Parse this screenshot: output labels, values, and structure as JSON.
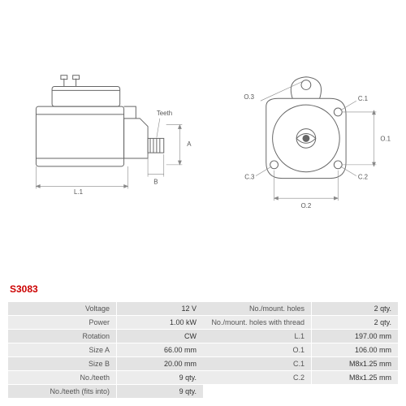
{
  "model": "S3083",
  "colors": {
    "line": "#666",
    "dim": "#888",
    "model": "#c00",
    "row_a": "#e3e3e3",
    "row_b": "#ececec",
    "text": "#555",
    "val": "#333"
  },
  "drawing_labels": {
    "side": {
      "L1": "L.1",
      "B": "B",
      "A": "A",
      "Teeth": "Teeth"
    },
    "front": {
      "O1": "O.1",
      "O2": "O.2",
      "O3": "O.3",
      "C1": "C.1",
      "C2": "C.2",
      "C3": "C.3"
    }
  },
  "specs_left": [
    {
      "label": "Voltage",
      "value": "12 V"
    },
    {
      "label": "Power",
      "value": "1.00 kW"
    },
    {
      "label": "Rotation",
      "value": "CW"
    },
    {
      "label": "Size A",
      "value": "66.00 mm"
    },
    {
      "label": "Size B",
      "value": "20.00 mm"
    },
    {
      "label": "No./teeth",
      "value": "9 qty."
    },
    {
      "label": "No./teeth (fits into)",
      "value": "9 qty."
    }
  ],
  "specs_right": [
    {
      "label": "No./mount. holes",
      "value": "2 qty."
    },
    {
      "label": "No./mount. holes with thread",
      "value": "2 qty."
    },
    {
      "label": "L.1",
      "value": "197.00 mm"
    },
    {
      "label": "O.1",
      "value": "106.00 mm"
    },
    {
      "label": "C.1",
      "value": "M8x1.25 mm"
    },
    {
      "label": "C.2",
      "value": "M8x1.25 mm"
    }
  ]
}
